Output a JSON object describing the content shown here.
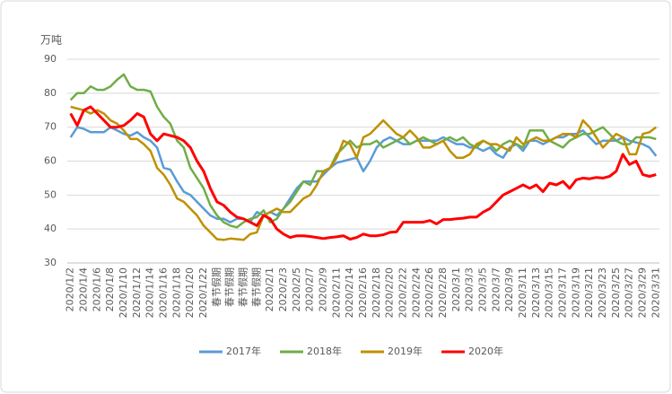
{
  "chart_data": {
    "type": "line",
    "y_label": "万吨",
    "categories": [
      "2020/1/2",
      null,
      "2020/1/4",
      null,
      "2020/1/6",
      null,
      "2020/1/8",
      null,
      "2020/1/10",
      null,
      "2020/1/12",
      null,
      "2020/1/14",
      null,
      "2020/1/16",
      null,
      "2020/1/18",
      null,
      "2020/1/20",
      null,
      "2020/1/22",
      null,
      "春节假期",
      null,
      "春节假期",
      null,
      "春节假期",
      null,
      "春节假期",
      null,
      "2020/2/1",
      null,
      "2020/2/3",
      null,
      "2020/2/5",
      null,
      "2020/2/7",
      null,
      "2020/2/9",
      null,
      "2020/2/11",
      null,
      "2020/2/14",
      null,
      "2020/2/16",
      null,
      "2020/2/18",
      null,
      "2020/2/20",
      null,
      "2020/2/22",
      null,
      "2020/2/24",
      null,
      "2020/2/26",
      null,
      "2020/2/28",
      null,
      "2020/3/1",
      null,
      "2020/3/3",
      null,
      "2020/3/5",
      null,
      "2020/3/7",
      null,
      "2020/3/9",
      null,
      "2020/3/11",
      null,
      "2020/3/13",
      null,
      "2020/3/15",
      null,
      "2020/3/17",
      null,
      "2020/3/19",
      null,
      "2020/3/21",
      null,
      "2020/3/23",
      null,
      "2020/3/25",
      null,
      "2020/3/27",
      null,
      "2020/3/29",
      null,
      "2020/3/31"
    ],
    "series": [
      {
        "name": "2017年",
        "color": "#5b9bd5",
        "values": [
          67,
          70,
          69.5,
          68.5,
          68.5,
          68.5,
          70,
          69,
          68,
          67.5,
          68.5,
          67,
          66,
          64,
          58,
          57.5,
          54,
          51,
          50,
          48,
          46,
          44,
          43,
          43,
          42,
          43,
          43,
          42,
          45,
          44,
          45,
          44,
          46,
          49,
          52,
          54,
          54,
          54,
          56,
          58,
          59.5,
          60,
          60.5,
          61,
          57,
          60,
          64,
          66,
          67,
          66,
          65,
          65,
          66,
          66,
          66,
          66,
          67,
          66,
          65,
          65,
          64,
          64,
          63,
          64,
          62,
          61,
          64,
          65,
          63,
          66,
          66,
          65,
          66,
          67,
          67,
          68,
          68,
          69,
          67,
          65,
          66,
          66,
          66,
          67,
          66,
          65.5,
          65,
          64,
          61.5
        ]
      },
      {
        "name": "2018年",
        "color": "#70ad47",
        "values": [
          78,
          80,
          80,
          82,
          81,
          81,
          82,
          84,
          85.5,
          82,
          81,
          81,
          80.5,
          76,
          73,
          71,
          66,
          64,
          58,
          55,
          52,
          47,
          44,
          42,
          41,
          40.5,
          42,
          43,
          43.5,
          45.5,
          42,
          43,
          46,
          48,
          51,
          54,
          53,
          57,
          57,
          58,
          62,
          64,
          66,
          64,
          65,
          65,
          66,
          64,
          65,
          66,
          67,
          65,
          66,
          67,
          66,
          65,
          66,
          67,
          66,
          67,
          65,
          64,
          66,
          65,
          63,
          65,
          66,
          65,
          64,
          69,
          69,
          69,
          66,
          65,
          64,
          66,
          67,
          68,
          68,
          69,
          70,
          68,
          66,
          65,
          65,
          67,
          67,
          67,
          66.5
        ]
      },
      {
        "name": "2019年",
        "color": "#bf9000",
        "values": [
          76,
          75.5,
          75,
          74,
          75,
          74,
          72,
          71,
          69,
          66.5,
          66.5,
          65,
          63,
          58,
          56,
          53,
          49,
          48,
          46,
          44,
          41,
          39,
          37,
          36.8,
          37.2,
          37,
          36.8,
          38.5,
          39,
          44,
          45,
          46,
          45,
          45,
          47,
          49,
          50,
          53,
          57,
          58,
          61,
          66,
          65,
          61,
          67,
          68,
          70,
          72,
          70,
          68,
          67,
          69,
          67,
          64,
          64,
          65,
          66,
          63,
          61,
          61,
          62,
          65,
          66,
          65,
          65,
          64,
          63,
          67,
          65,
          66,
          67,
          66,
          66,
          67,
          68,
          68,
          67,
          72,
          70,
          67,
          64,
          66,
          68,
          67,
          62,
          62,
          68,
          68.5,
          70
        ]
      },
      {
        "name": "2020年",
        "color": "#ff0000",
        "values": [
          74,
          70.5,
          75,
          76,
          74,
          72,
          70,
          70,
          70.5,
          72,
          74,
          73,
          68,
          66,
          68,
          67.5,
          67,
          66,
          64,
          60,
          57,
          52,
          48,
          47,
          45,
          43.5,
          43,
          42,
          41,
          44,
          43,
          40,
          38.5,
          37.5,
          38,
          38,
          37.8,
          37.5,
          37.2,
          37.5,
          37.7,
          38,
          37,
          37.5,
          38.5,
          38,
          38,
          38.3,
          39,
          39.2,
          42,
          42,
          42,
          42,
          42.5,
          41.5,
          42.8,
          42.8,
          43,
          43.2,
          43.5,
          43.5,
          45,
          46,
          48,
          50,
          51,
          52,
          53,
          52,
          53,
          51,
          53.5,
          53,
          54,
          52,
          54.5,
          55,
          54.8,
          55.2,
          55,
          55.5,
          57,
          62,
          59,
          60,
          56,
          55.5,
          56
        ]
      }
    ],
    "ylim": [
      30,
      90
    ],
    "yticks": [
      30,
      40,
      50,
      60,
      70,
      80,
      90
    ],
    "grid": true,
    "legend": "bottom"
  }
}
